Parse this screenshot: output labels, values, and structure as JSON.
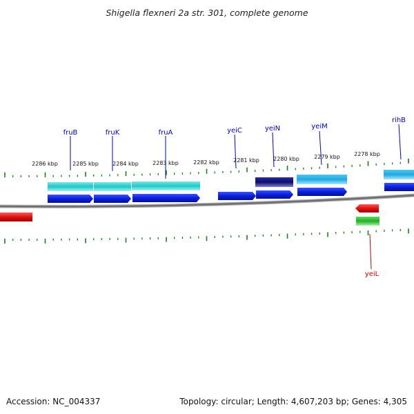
{
  "title": "Shigella flexneri 2a str. 301, complete genome",
  "footer": {
    "accession": "Accession: NC_004337",
    "summary": "Topology: circular; Length: 4,607,203 bp; Genes: 4,305"
  },
  "colors": {
    "background": "#ffffff",
    "backbone": "#808080",
    "tick": "#1a7f1a",
    "plus_gene_label": "#0000cc",
    "minus_gene_label": "#cc0000",
    "cds_plus": "#0a1ee0",
    "operon": "#1fc8c8",
    "cds_minus": "#e01010",
    "rna_minus": "#22b022",
    "dark_feature": "#0b0b6a",
    "light_feature": "#1fa8e0"
  },
  "scale_labels": [
    "2286 kbp",
    "2285 kbp",
    "2284 kbp",
    "2283 kbp",
    "2282 kbp",
    "2281 kbp",
    "2280 kbp",
    "2279 kbp",
    "2278 kbp"
  ],
  "gene_labels": [
    {
      "name": "fruB",
      "strand": "plus"
    },
    {
      "name": "fruK",
      "strand": "plus"
    },
    {
      "name": "fruA",
      "strand": "plus"
    },
    {
      "name": "yeiC",
      "strand": "plus"
    },
    {
      "name": "yeiN",
      "strand": "plus"
    },
    {
      "name": "yeiM",
      "strand": "plus"
    },
    {
      "name": "rihB",
      "strand": "plus"
    },
    {
      "name": "yeiL",
      "strand": "minus"
    }
  ]
}
